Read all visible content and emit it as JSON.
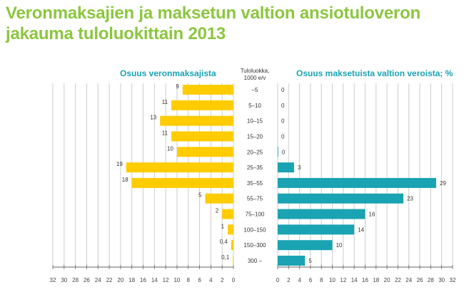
{
  "title_line1": "Veronmaksajien ja maksetun valtion ansiotuloveron",
  "title_line2": "jakauma tuloluokittain 2013",
  "colors": {
    "title": "#8cc63f",
    "left_bar": "#ffcc00",
    "right_bar": "#1aa3b2",
    "grid": "#cccccc"
  },
  "chart_data": {
    "type": "bar",
    "orientation": "horizontal-butterfly",
    "category_header_line1": "Tuloluokka,",
    "category_header_line2": "1000 e/v",
    "categories": [
      "–5",
      "5–10",
      "10–15",
      "15–20",
      "20–25",
      "25–35",
      "35–55",
      "55–75",
      "75–100",
      "100–150",
      "150–300",
      "300 –"
    ],
    "series": [
      {
        "name": "Osuus veronmaksajista",
        "values": [
          9,
          11,
          13,
          11,
          10,
          19,
          18,
          5,
          2,
          1,
          0.4,
          0.1
        ],
        "labels": [
          "9",
          "11",
          "13",
          "11",
          "10",
          "19",
          "18",
          "5",
          "2",
          "1",
          "0,4",
          "0,1"
        ]
      },
      {
        "name": "Osuus maksetuista  valtion veroista; %",
        "values": [
          0,
          0,
          0,
          0,
          0.1,
          3,
          29,
          23,
          16,
          14,
          10,
          5
        ],
        "labels": [
          "0",
          "0",
          "0",
          "0",
          "0",
          "3",
          "29",
          "23",
          "16",
          "14",
          "10",
          "5"
        ]
      }
    ],
    "xlim": [
      0,
      32
    ],
    "ticks": [
      "0",
      "2",
      "4",
      "6",
      "8",
      "10",
      "12",
      "14",
      "16",
      "18",
      "20",
      "22",
      "24",
      "26",
      "28",
      "30",
      "32"
    ],
    "grid": true
  }
}
